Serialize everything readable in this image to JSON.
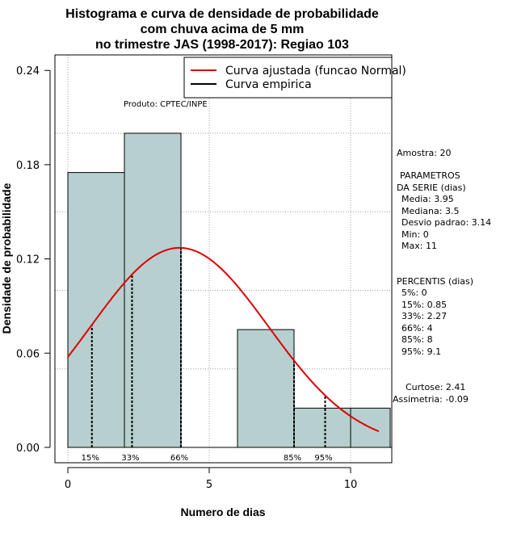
{
  "chart_data": {
    "type": "histogram",
    "title_lines": [
      "Histograma e curva de densidade de probabilidade",
      "com chuva acima de 5 mm",
      "no trimestre JAS (1998-2017): Regiao 103"
    ],
    "xlabel": "Numero de dias",
    "ylabel": "Densidade de probabilidade",
    "xlim": [
      -0.4,
      11.4
    ],
    "ylim": [
      -0.009,
      0.25
    ],
    "x_ticks": [
      0,
      5,
      10
    ],
    "y_ticks": [
      0.0,
      0.06,
      0.12,
      0.18,
      0.24
    ],
    "y_tick_labels": [
      "0.00",
      "0.06",
      "0.12",
      "0.18",
      "0.24"
    ],
    "grid_y": [
      0.05,
      0.1,
      0.15,
      0.2
    ],
    "grid_x": [
      0,
      5,
      10
    ],
    "bins": [
      {
        "start": 0,
        "end": 2,
        "density": 0.175
      },
      {
        "start": 2,
        "end": 4,
        "density": 0.2
      },
      {
        "start": 4,
        "end": 6,
        "density": 0.0
      },
      {
        "start": 6,
        "end": 8,
        "density": 0.075
      },
      {
        "start": 8,
        "end": 10,
        "density": 0.025
      },
      {
        "start": 10,
        "end": 11.4,
        "density": 0.025
      }
    ],
    "bar_color": "#b7cfcf",
    "curve": {
      "name": "Curva ajustada (funcao Normal)",
      "distribution": "normal",
      "mean": 3.95,
      "sd": 3.14,
      "x_range": [
        0,
        11
      ],
      "color": "#dd0000"
    },
    "empirical_name": "Curva empirica",
    "percentile_markers": [
      {
        "label": "15%",
        "x": 0.85
      },
      {
        "label": "33%",
        "x": 2.27
      },
      {
        "label": "66%",
        "x": 4
      },
      {
        "label": "85%",
        "x": 8
      },
      {
        "label": "95%",
        "x": 9.1
      }
    ],
    "product_label": "Produto: CPTEC/INPE",
    "stats": {
      "amostra": "Amostra: 20",
      "params_title_1": "PARAMETROS",
      "params_title_2": "DA SERIE (dias)",
      "params": [
        "Media: 3.95",
        "Mediana: 3.5",
        "Desvio padrao: 3.14",
        "Min: 0",
        "Max: 11"
      ],
      "percentis_title": "PERCENTIS (dias)",
      "percentis": [
        "5%: 0",
        "15%: 0.85",
        "33%: 2.27",
        "66%: 4",
        "85%: 8",
        "95%: 9.1"
      ],
      "curtose": "Curtose: 2.41",
      "assimetria": "Assimetria: -0.09"
    }
  }
}
